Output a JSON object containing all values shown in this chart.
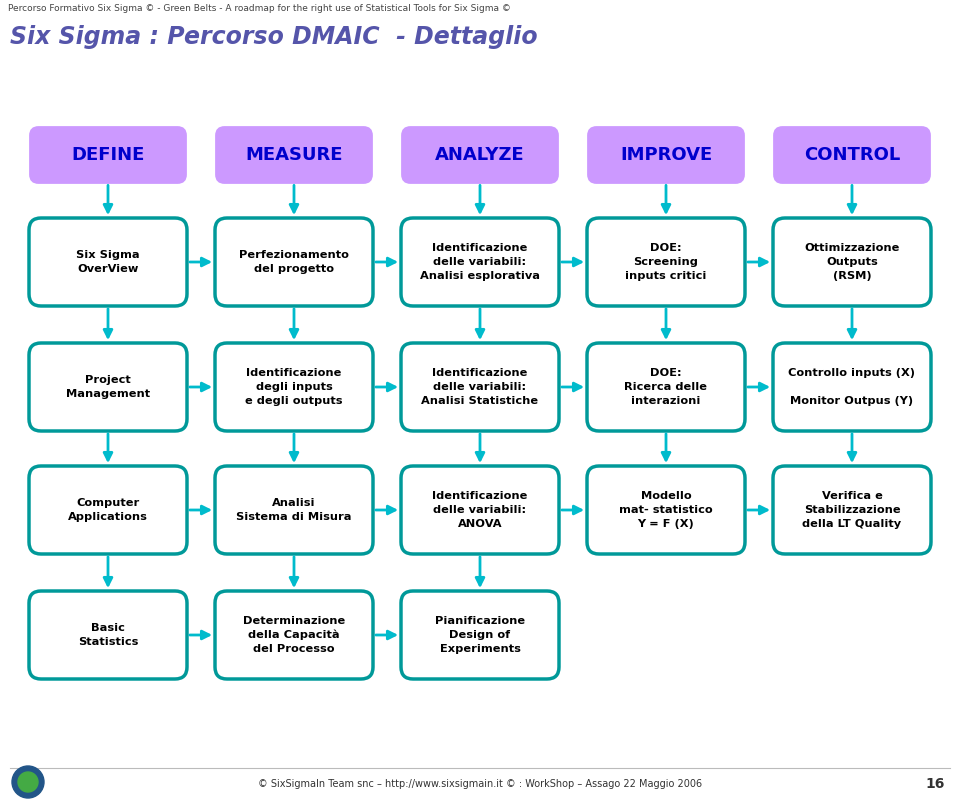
{
  "title_small": "Percorso Formativo Six Sigma © - Green Belts - A roadmap for the right use of Statistical Tools for Six Sigma ©",
  "title_main": "Six Sigma : Percorso DMAIC  - Dettaglio",
  "footer": "© SixSigmaIn Team snc – http://www.sixsigmain.it © : WorkShop – Assago 22 Maggio 2006",
  "footer_page": "16",
  "dmaic_labels": [
    "DEFINE",
    "MEASURE",
    "ANALYZE",
    "IMPROVE",
    "CONTROL"
  ],
  "dmaic_color": "#cc99ff",
  "dmaic_text_color": "#0000cc",
  "box_border_color": "#009999",
  "box_fill_color": "#ffffff",
  "arrow_color": "#00bbcc",
  "rows": [
    [
      "Six Sigma\nOverView",
      "Perfezionamento\ndel progetto",
      "Identificazione\ndelle variabili:\nAnalisi esplorativa",
      "DOE:\nScreening\ninputs critici",
      "Ottimizzazione\nOutputs\n(RSM)"
    ],
    [
      "Project\nManagement",
      "Identificazione\ndegli inputs\ne degli outputs",
      "Identificazione\ndelle variabili:\nAnalisi Statistiche",
      "DOE:\nRicerca delle\ninterazioni",
      "Controllo inputs (X)\n\nMonitor Outpus (Y)"
    ],
    [
      "Computer\nApplications",
      "Analisi\nSistema di Misura",
      "Identificazione\ndelle variabili:\nANOVA",
      "Modello\nmat- statistico\nY = F (X)",
      "Verifica e\nStabilizzazione\ndella LT Quality"
    ],
    [
      "Basic\nStatistics",
      "Determinazione\ndella Capacità\ndel Processo",
      "Pianificazione\nDesign of\nExperiments",
      null,
      null
    ]
  ],
  "bg_color": "#ffffff",
  "text_color": "#000000",
  "title_color": "#5555aa",
  "small_title_color": "#444444"
}
